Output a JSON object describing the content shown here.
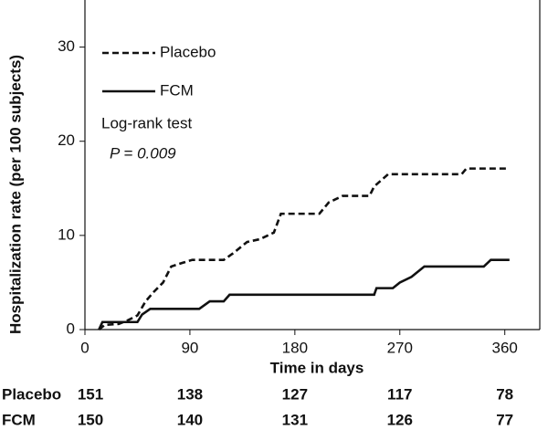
{
  "chart_data": {
    "type": "line",
    "y_label": "Hospitalization rate (per 100 subjects)",
    "x_label": "Time in days",
    "xlim": [
      0,
      390
    ],
    "ylim": [
      0,
      35
    ],
    "xticks": [
      0,
      90,
      180,
      270,
      360
    ],
    "yticks": [
      0,
      10,
      20,
      30
    ],
    "annotations": [
      "Log-rank test",
      "P = 0.009"
    ],
    "series": [
      {
        "name": "Placebo",
        "color": "#111111",
        "dash": true,
        "x": [
          12,
          17,
          29,
          37,
          45,
          52,
          59,
          67,
          74,
          84,
          92,
          119,
          127,
          139,
          150,
          162,
          168,
          201,
          209,
          221,
          244,
          248,
          260,
          323,
          327,
          364
        ],
        "values": [
          0,
          0.5,
          0.6,
          1,
          1.5,
          3,
          4,
          5,
          6.7,
          7.1,
          7.4,
          7.4,
          8.1,
          9.3,
          9.6,
          10.3,
          12.3,
          12.3,
          13.5,
          14.2,
          14.2,
          15.2,
          16.5,
          16.5,
          17.1,
          17.1
        ]
      },
      {
        "name": "FCM",
        "color": "#111111",
        "dash": false,
        "x": [
          12,
          15,
          45,
          49,
          56,
          98,
          107,
          119,
          124,
          248,
          250,
          264,
          270,
          280,
          291,
          342,
          348,
          364
        ],
        "values": [
          0,
          0.8,
          0.8,
          1.6,
          2.2,
          2.2,
          3.0,
          3.0,
          3.7,
          3.7,
          4.4,
          4.4,
          5.0,
          5.6,
          6.7,
          6.7,
          7.4,
          7.4
        ]
      }
    ],
    "at_risk": [
      {
        "name": "Placebo",
        "values": [
          151,
          138,
          127,
          117,
          78
        ]
      },
      {
        "name": "FCM",
        "values": [
          150,
          140,
          131,
          126,
          77
        ]
      }
    ]
  }
}
